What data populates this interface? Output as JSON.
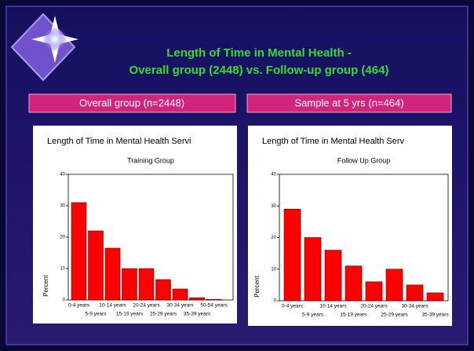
{
  "slide": {
    "title_lines": [
      "Length of Time in Mental Health -",
      "Overall group (2448) vs. Follow-up group (464)"
    ],
    "panels": [
      "Overall group (n=2448)",
      "Sample at 5 yrs (n=464)"
    ]
  },
  "chart_data": [
    {
      "type": "bar",
      "title": "Length of Time in Mental Health Servi",
      "subtitle": "Training Group",
      "y_label": "Percent",
      "categories": [
        "0-4 years",
        "5-9 years",
        "10-14 years",
        "15-19 years",
        "20-24 years",
        "25-29 years",
        "30-34 years",
        "35-39 years",
        "50-54 years"
      ],
      "values": [
        31,
        22,
        16.5,
        10,
        10,
        6.5,
        3.5,
        0.7,
        0.2
      ],
      "color": "#ff0000",
      "ylim": [
        0,
        40
      ],
      "yticks": [
        0,
        10,
        20,
        30,
        40
      ]
    },
    {
      "type": "bar",
      "title": "Length of Time in Mental Health Serv",
      "subtitle": "Follow Up Group",
      "y_label": "Percent",
      "categories": [
        "0-4 years",
        "5-9 years",
        "10-14 years",
        "15-19 years",
        "20-24 years",
        "25-29 years",
        "30-34 years",
        "35-39 years"
      ],
      "values": [
        29,
        20,
        16,
        11,
        6,
        10,
        5,
        2.5
      ],
      "color": "#ff0000",
      "ylim": [
        0,
        40
      ],
      "yticks": [
        0,
        10,
        20,
        30,
        40
      ]
    }
  ]
}
